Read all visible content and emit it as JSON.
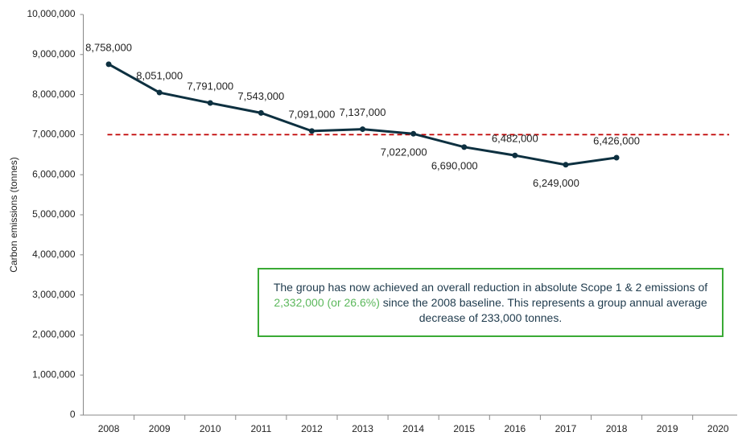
{
  "chart_data": {
    "type": "line",
    "y_label": "Carbon emissions (tonnes)",
    "categories": [
      "2008",
      "2009",
      "2010",
      "2011",
      "2012",
      "2013",
      "2014",
      "2015",
      "2016",
      "2017",
      "2018",
      "2019",
      "2020"
    ],
    "series": [
      {
        "name": "Carbon emissions",
        "color": "#0d3040",
        "values": [
          8758000,
          8051000,
          7791000,
          7543000,
          7091000,
          7137000,
          7022000,
          6690000,
          6482000,
          6249000,
          6426000,
          null,
          null
        ],
        "value_labels": [
          "8,758,000",
          "8,051,000",
          "7,791,000",
          "7,543,000",
          "7,091,000",
          "7,137,000",
          "7,022,000",
          "6,690,000",
          "6,482,000",
          "6,249,000",
          "6,426,000",
          null,
          null
        ]
      }
    ],
    "reference_line": {
      "value": 7000000,
      "color": "#c00000"
    },
    "ylim": [
      0,
      10000000
    ],
    "yticks": [
      0,
      {
        "value": 1000000,
        "label": "1,000,000"
      },
      {
        "value": 2000000,
        "label": "2,000,000"
      },
      {
        "value": 3000000,
        "label": "3,000,000"
      },
      {
        "value": 4000000,
        "label": "4,000,000"
      },
      {
        "value": 5000000,
        "label": "5,000,000"
      },
      {
        "value": 6000000,
        "label": "6,000,000"
      },
      {
        "value": 7000000,
        "label": "7,000,000"
      },
      {
        "value": 8000000,
        "label": "8,000,000"
      },
      {
        "value": 9000000,
        "label": "9,000,000"
      },
      {
        "value": 10000000,
        "label": "10,000,000"
      }
    ],
    "annotation": {
      "border_color": "#3aaa35",
      "highlight_color": "#5cb85c",
      "parts": [
        "The group has now achieved an overall reduction in absolute Scope 1 & 2 emissions of ",
        "2,332,000 (or 26.6%)",
        " since the 2008 baseline. This represents a group annual average decrease of 233,000 tonnes."
      ]
    }
  }
}
